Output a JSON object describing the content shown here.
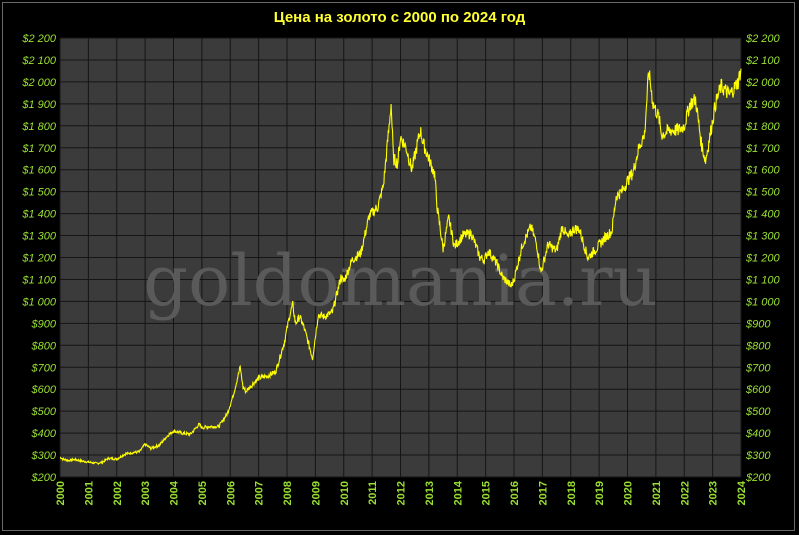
{
  "chart_data": {
    "type": "line",
    "title": "Цена на золото с 2000 по 2024  год",
    "watermark": "goldomania.ru",
    "xlabel": "",
    "ylabel": "",
    "xlim": [
      2000,
      2024
    ],
    "ylim": [
      200,
      2200
    ],
    "grid": true,
    "y_ticks": [
      200,
      300,
      400,
      500,
      600,
      700,
      800,
      900,
      1000,
      1100,
      1200,
      1300,
      1400,
      1500,
      1600,
      1700,
      1800,
      1900,
      2000,
      2100,
      2200
    ],
    "y_tick_labels": [
      "$200",
      "$300",
      "$400",
      "$500",
      "$600",
      "$700",
      "$800",
      "$900",
      "$1 000",
      "$1 100",
      "$1 200",
      "$1 300",
      "$1 400",
      "$1 500",
      "$1 600",
      "$1 700",
      "$1 800",
      "$1 900",
      "$2 000",
      "$2 100",
      "$2 200"
    ],
    "x_ticks": [
      "2000",
      "2001",
      "2002",
      "2003",
      "2004",
      "2005",
      "2006",
      "2007",
      "2008",
      "2009",
      "2010",
      "2011",
      "2012",
      "2013",
      "2014",
      "2015",
      "2016",
      "2017",
      "2018",
      "2019",
      "2020",
      "2021",
      "2022",
      "2023",
      "2024"
    ],
    "colors": {
      "line": "#ffff00",
      "plot_bg": "#3b3b3b",
      "grid": "#151515",
      "tick_text": "#99e033",
      "title": "#ffff33"
    },
    "series": [
      {
        "x": [
          2000.0,
          2000.1,
          2000.3,
          2000.5,
          2000.8,
          2001.0,
          2001.3,
          2001.5,
          2001.7,
          2002.0,
          2002.3,
          2002.5,
          2002.8,
          2003.0,
          2003.2,
          2003.5,
          2003.8,
          2004.0,
          2004.3,
          2004.6,
          2004.9,
          2005.0,
          2005.3,
          2005.6,
          2005.9,
          2006.1,
          2006.35,
          2006.45,
          2006.55,
          2006.8,
          2007.0,
          2007.3,
          2007.6,
          2007.9,
          2008.1,
          2008.2,
          2008.3,
          2008.45,
          2008.6,
          2008.8,
          2008.9,
          2009.1,
          2009.3,
          2009.6,
          2009.9,
          2010.0,
          2010.3,
          2010.6,
          2010.9,
          2011.2,
          2011.4,
          2011.6,
          2011.67,
          2011.75,
          2011.9,
          2012.0,
          2012.2,
          2012.4,
          2012.7,
          2012.8,
          2013.0,
          2013.2,
          2013.3,
          2013.5,
          2013.7,
          2013.9,
          2014.2,
          2014.5,
          2014.8,
          2014.95,
          2015.1,
          2015.4,
          2015.6,
          2015.9,
          2016.0,
          2016.3,
          2016.6,
          2016.8,
          2016.95,
          2017.2,
          2017.5,
          2017.7,
          2017.9,
          2018.1,
          2018.3,
          2018.6,
          2018.9,
          2019.2,
          2019.45,
          2019.6,
          2019.8,
          2020.0,
          2020.2,
          2020.4,
          2020.6,
          2020.75,
          2020.9,
          2021.1,
          2021.2,
          2021.5,
          2021.8,
          2022.0,
          2022.2,
          2022.4,
          2022.6,
          2022.75,
          2022.9,
          2023.1,
          2023.3,
          2023.6,
          2023.8,
          2023.9,
          2024.0
        ],
        "y": [
          290,
          282,
          275,
          280,
          272,
          268,
          262,
          268,
          285,
          282,
          305,
          310,
          315,
          350,
          330,
          345,
          390,
          410,
          400,
          395,
          440,
          425,
          430,
          430,
          490,
          570,
          700,
          610,
          590,
          625,
          650,
          660,
          680,
          810,
          940,
          985,
          900,
          930,
          880,
          790,
          740,
          940,
          930,
          950,
          1110,
          1090,
          1190,
          1220,
          1390,
          1430,
          1530,
          1800,
          1900,
          1650,
          1630,
          1750,
          1700,
          1600,
          1780,
          1720,
          1650,
          1580,
          1420,
          1240,
          1380,
          1250,
          1300,
          1310,
          1200,
          1190,
          1230,
          1170,
          1110,
          1070,
          1100,
          1260,
          1340,
          1260,
          1130,
          1260,
          1230,
          1340,
          1290,
          1330,
          1330,
          1200,
          1240,
          1290,
          1320,
          1480,
          1500,
          1550,
          1590,
          1700,
          1760,
          2050,
          1900,
          1840,
          1760,
          1780,
          1780,
          1800,
          1900,
          1920,
          1720,
          1640,
          1750,
          1900,
          1980,
          1940,
          1980,
          2000,
          2060
        ]
      }
    ]
  }
}
